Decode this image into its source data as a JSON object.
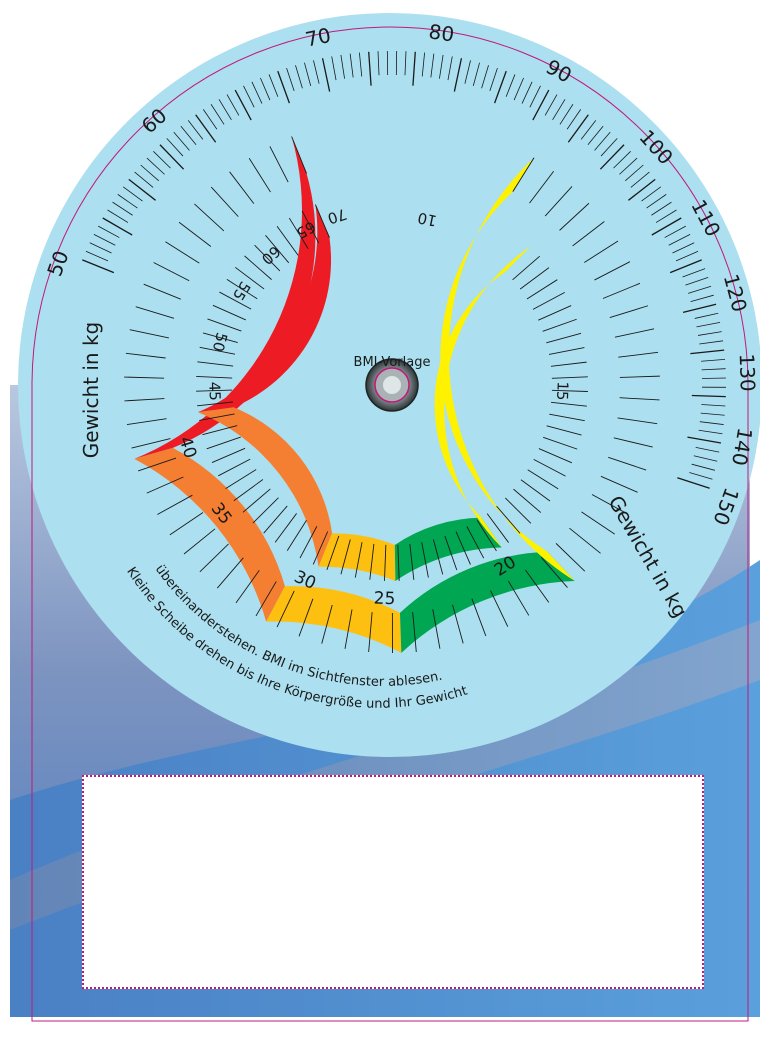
{
  "center_label": "BMI-Vorlage",
  "weight_label_left": "Gewicht in kg",
  "weight_label_right": "Gewicht in kg",
  "instruction_line1": "Kleine Scheibe drehen bis Ihre Körpergröße und Ihr Gewicht",
  "instruction_line2": "übereinanderstehen. BMI im Sichtfenster ablesen.",
  "outer_weight_scale": {
    "left_labels": [
      "50",
      "60",
      "70",
      "80",
      "90"
    ],
    "right_labels": [
      "100",
      "110",
      "120",
      "130",
      "140",
      "150"
    ]
  },
  "outer_bmi_ring": {
    "labels": [
      "40",
      "35",
      "30",
      "25",
      "20"
    ]
  },
  "inner_bmi_ring": {
    "labels": [
      "70",
      "65",
      "60",
      "55",
      "50",
      "45",
      "10",
      "15"
    ]
  },
  "colors": {
    "underweight": "#fff200",
    "normal": "#00a651",
    "overweight": "#fdbf10",
    "obese": "#f47f32",
    "severe": "#ed1c24",
    "disc": "#acdfef",
    "background": "#4a88c8",
    "border": "#c2187a"
  },
  "result_window": {}
}
